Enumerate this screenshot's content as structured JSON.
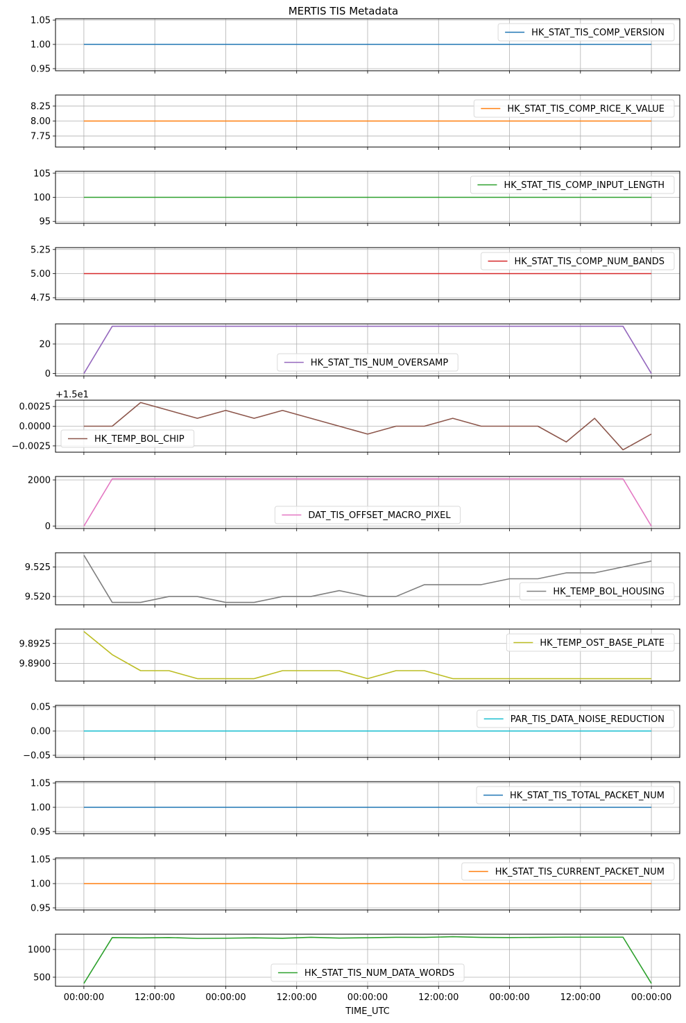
{
  "chart_data": {
    "type": "line",
    "title": "MERTIS TIS Metadata",
    "xlabel": "TIME_UTC",
    "x_unit": "hours from first sample",
    "x": [
      0,
      4.8,
      9.6,
      14.4,
      19.2,
      24,
      28.8,
      33.6,
      38.4,
      43.2,
      48,
      52.8,
      57.6,
      62.4,
      67.2,
      72,
      76.8,
      81.6,
      86.4,
      91.2,
      96
    ],
    "xlim": [
      -4.8,
      100.8
    ],
    "x_ticks": [
      0,
      12,
      24,
      36,
      48,
      60,
      72,
      84,
      96
    ],
    "x_tick_labels": [
      "00:00:00",
      "12:00:00",
      "00:00:00",
      "12:00:00",
      "00:00:00",
      "12:00:00",
      "00:00:00",
      "12:00:00",
      "00:00:00"
    ],
    "grid": true,
    "subplots": [
      {
        "name": "HK_STAT_TIS_COMP_VERSION",
        "color": "#1f77b4",
        "legend_loc": "upper right",
        "ylim": [
          0.9457,
          1.0529
        ],
        "y_ticks": [
          0.95,
          1.0,
          1.05
        ],
        "y_tick_labels": [
          "0.95",
          "1.00",
          "1.05"
        ],
        "values": [
          1,
          1,
          1,
          1,
          1,
          1,
          1,
          1,
          1,
          1,
          1,
          1,
          1,
          1,
          1,
          1,
          1,
          1,
          1,
          1,
          1
        ]
      },
      {
        "name": "HK_STAT_TIS_COMP_RICE_K_VALUE",
        "color": "#ff7f0e",
        "legend_loc": "upper right",
        "ylim": [
          7.565,
          8.435
        ],
        "y_ticks": [
          7.75,
          8.0,
          8.25
        ],
        "y_tick_labels": [
          "7.75",
          "8.00",
          "8.25"
        ],
        "values": [
          8,
          8,
          8,
          8,
          8,
          8,
          8,
          8,
          8,
          8,
          8,
          8,
          8,
          8,
          8,
          8,
          8,
          8,
          8,
          8,
          8
        ]
      },
      {
        "name": "HK_STAT_TIS_COMP_INPUT_LENGTH",
        "color": "#2ca02c",
        "legend_loc": "upper right",
        "ylim": [
          94.6,
          105.4
        ],
        "y_ticks": [
          95,
          100,
          105
        ],
        "y_tick_labels": [
          "95",
          "100",
          "105"
        ],
        "values": [
          100,
          100,
          100,
          100,
          100,
          100,
          100,
          100,
          100,
          100,
          100,
          100,
          100,
          100,
          100,
          100,
          100,
          100,
          100,
          100,
          100
        ]
      },
      {
        "name": "HK_STAT_TIS_COMP_NUM_BANDS",
        "color": "#d62728",
        "legend_loc": "upper right",
        "ylim": [
          4.73,
          5.27
        ],
        "y_ticks": [
          4.75,
          5.0,
          5.25
        ],
        "y_tick_labels": [
          "4.75",
          "5.00",
          "5.25"
        ],
        "values": [
          5,
          5,
          5,
          5,
          5,
          5,
          5,
          5,
          5,
          5,
          5,
          5,
          5,
          5,
          5,
          5,
          5,
          5,
          5,
          5,
          5
        ]
      },
      {
        "name": "HK_STAT_TIS_NUM_OVERSAMP",
        "color": "#9467bd",
        "legend_loc": "lower center",
        "ylim": [
          -1.6,
          33.6
        ],
        "y_ticks": [
          0,
          20
        ],
        "y_tick_labels": [
          "0",
          "20"
        ],
        "values": [
          0,
          32,
          32,
          32,
          32,
          32,
          32,
          32,
          32,
          32,
          32,
          32,
          32,
          32,
          32,
          32,
          32,
          32,
          32,
          32,
          0
        ]
      },
      {
        "name": "HK_TEMP_BOL_CHIP",
        "color": "#8c564b",
        "legend_loc": "lower left",
        "offset_text": "+1.5e1",
        "ylim": [
          -0.0033,
          0.0033
        ],
        "y_ticks": [
          -0.0025,
          0.0,
          0.0025
        ],
        "y_tick_labels": [
          "−0.0025",
          "0.0000",
          "0.0025"
        ],
        "values": [
          0,
          0,
          0.003,
          0.002,
          0.001,
          0.002,
          0.001,
          0.002,
          0.001,
          0,
          -0.001,
          0,
          0,
          0.001,
          0,
          0,
          0,
          -0.002,
          0.001,
          -0.003,
          -0.001
        ]
      },
      {
        "name": "DAT_TIS_OFFSET_MACRO_PIXEL",
        "color": "#e377c2",
        "legend_loc": "lower center",
        "ylim": [
          -102,
          2150
        ],
        "y_ticks": [
          0,
          2000
        ],
        "y_tick_labels": [
          "0",
          "2000"
        ],
        "values": [
          0,
          2048,
          2048,
          2048,
          2048,
          2048,
          2048,
          2048,
          2048,
          2048,
          2048,
          2048,
          2048,
          2048,
          2048,
          2048,
          2048,
          2048,
          2048,
          2048,
          0
        ]
      },
      {
        "name": "HK_TEMP_BOL_HOUSING",
        "color": "#7f7f7f",
        "legend_loc": "lower right",
        "ylim": [
          9.5186,
          9.5274
        ],
        "y_ticks": [
          9.52,
          9.525
        ],
        "y_tick_labels": [
          "9.520",
          "9.525"
        ],
        "values": [
          9.527,
          9.519,
          9.519,
          9.52,
          9.52,
          9.519,
          9.519,
          9.52,
          9.52,
          9.521,
          9.52,
          9.52,
          9.522,
          9.522,
          9.522,
          9.523,
          9.523,
          9.524,
          9.524,
          9.525,
          9.526
        ]
      },
      {
        "name": "HK_TEMP_OST_BASE_PLATE",
        "color": "#bcbd22",
        "legend_loc": "upper right",
        "ylim": [
          9.8878,
          9.8943
        ],
        "y_ticks": [
          9.89,
          9.8925
        ],
        "y_tick_labels": [
          "9.8900",
          "9.8925"
        ],
        "values": [
          9.894,
          9.8911,
          9.8891,
          9.8891,
          9.8881,
          9.8881,
          9.8881,
          9.8891,
          9.8891,
          9.8891,
          9.8881,
          9.8891,
          9.8891,
          9.8881,
          9.8881,
          9.8881,
          9.8881,
          9.8881,
          9.8881,
          9.8881,
          9.8881
        ]
      },
      {
        "name": "PAR_TIS_DATA_NOISE_REDUCTION",
        "color": "#17becf",
        "legend_loc": "upper right",
        "ylim": [
          -0.0543,
          0.0529
        ],
        "y_ticks": [
          -0.05,
          0.0,
          0.05
        ],
        "y_tick_labels": [
          "−0.05",
          "0.00",
          "0.05"
        ],
        "values": [
          0,
          0,
          0,
          0,
          0,
          0,
          0,
          0,
          0,
          0,
          0,
          0,
          0,
          0,
          0,
          0,
          0,
          0,
          0,
          0,
          0
        ]
      },
      {
        "name": "HK_STAT_TIS_TOTAL_PACKET_NUM",
        "color": "#1f77b4",
        "legend_loc": "upper right",
        "ylim": [
          0.9457,
          1.0529
        ],
        "y_ticks": [
          0.95,
          1.0,
          1.05
        ],
        "y_tick_labels": [
          "0.95",
          "1.00",
          "1.05"
        ],
        "values": [
          1,
          1,
          1,
          1,
          1,
          1,
          1,
          1,
          1,
          1,
          1,
          1,
          1,
          1,
          1,
          1,
          1,
          1,
          1,
          1,
          1
        ]
      },
      {
        "name": "HK_STAT_TIS_CURRENT_PACKET_NUM",
        "color": "#ff7f0e",
        "legend_loc": "upper right",
        "ylim": [
          0.9457,
          1.0529
        ],
        "y_ticks": [
          0.95,
          1.0,
          1.05
        ],
        "y_tick_labels": [
          "0.95",
          "1.00",
          "1.05"
        ],
        "values": [
          1,
          1,
          1,
          1,
          1,
          1,
          1,
          1,
          1,
          1,
          1,
          1,
          1,
          1,
          1,
          1,
          1,
          1,
          1,
          1,
          1
        ]
      },
      {
        "name": "HK_STAT_TIS_NUM_DATA_WORDS",
        "color": "#2ca02c",
        "legend_loc": "lower center",
        "ylim": [
          337,
          1275
        ],
        "y_ticks": [
          500,
          1000
        ],
        "y_tick_labels": [
          "500",
          "1000"
        ],
        "values": [
          388,
          1215,
          1208,
          1215,
          1200,
          1203,
          1210,
          1202,
          1220,
          1205,
          1212,
          1220,
          1218,
          1230,
          1218,
          1215,
          1218,
          1222,
          1222,
          1222,
          388
        ]
      }
    ]
  }
}
